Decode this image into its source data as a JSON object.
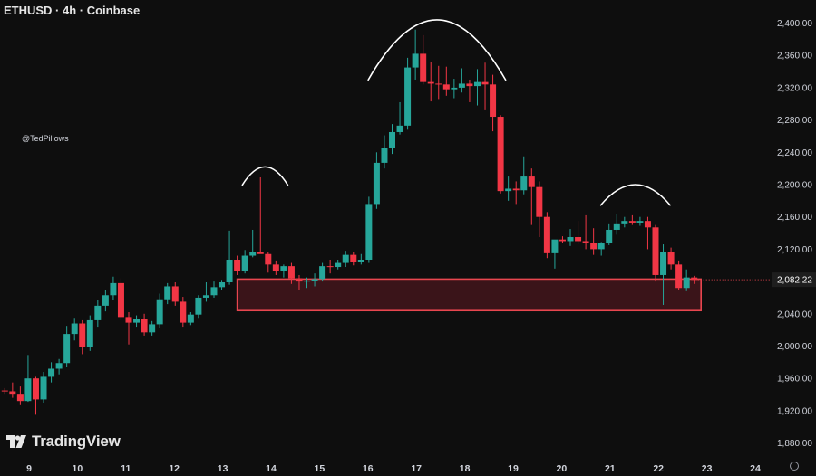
{
  "header": {
    "title": "ETHUSD · 4h · Coinbase"
  },
  "watermark": "@TedPillows",
  "brand": {
    "name": "TradingView"
  },
  "colors": {
    "up": "#26a69a",
    "down": "#f23645",
    "zone_border": "#e8464f",
    "zone_fill": "#3a1419",
    "price_label_bg": "#1e1e1e"
  },
  "icons": {
    "logo": "tradingview-logo-icon",
    "settings": "gear-icon"
  },
  "chart_data": {
    "type": "candlestick",
    "symbol": "ETHUSD",
    "timeframe": "4h",
    "exchange": "Coinbase",
    "y_ticks": [
      "2,400.00",
      "2,360.00",
      "2,320.00",
      "2,280.00",
      "2,240.00",
      "2,200.00",
      "2,160.00",
      "2,120.00",
      "2,040.00",
      "2,000.00",
      "1,960.00",
      "1,920.00",
      "1,880.00"
    ],
    "x_ticks": [
      "9",
      "10",
      "11",
      "12",
      "13",
      "14",
      "15",
      "16",
      "17",
      "18",
      "19",
      "20",
      "21",
      "22",
      "23",
      "24"
    ],
    "ylim": [
      1876,
      2414
    ],
    "last_price": "2,082.22",
    "support_zone": {
      "low": 2044,
      "high": 2083,
      "from_day": 13.3,
      "to_day": 22.88
    },
    "arcs": [
      {
        "label": "left shoulder",
        "x_from": 13.4,
        "x_to": 14.35,
        "peak": 2222,
        "base": 2199
      },
      {
        "label": "head",
        "x_from": 16.0,
        "x_to": 18.85,
        "peak": 2404,
        "base": 2329
      },
      {
        "label": "right shoulder",
        "x_from": 20.8,
        "x_to": 22.25,
        "peak": 2200,
        "base": 2174
      }
    ],
    "candles": [
      [
        8.5,
        1945,
        1948,
        1941,
        1944
      ],
      [
        8.66,
        1944,
        1955,
        1936,
        1941
      ],
      [
        8.82,
        1941,
        1950,
        1928,
        1932
      ],
      [
        8.98,
        1932,
        1989,
        1931,
        1960
      ],
      [
        9.14,
        1960,
        1962,
        1915,
        1934
      ],
      [
        9.3,
        1934,
        1968,
        1930,
        1962
      ],
      [
        9.46,
        1962,
        1980,
        1955,
        1972
      ],
      [
        9.62,
        1972,
        1984,
        1965,
        1979
      ],
      [
        9.78,
        1979,
        2025,
        1974,
        2015
      ],
      [
        9.94,
        2015,
        2035,
        2007,
        2028
      ],
      [
        10.1,
        2028,
        2032,
        1990,
        1999
      ],
      [
        10.26,
        1999,
        2038,
        1994,
        2032
      ],
      [
        10.42,
        2032,
        2057,
        2024,
        2050
      ],
      [
        10.58,
        2050,
        2070,
        2043,
        2063
      ],
      [
        10.74,
        2063,
        2086,
        2057,
        2078
      ],
      [
        10.9,
        2078,
        2084,
        2032,
        2036
      ],
      [
        11.06,
        2036,
        2042,
        2002,
        2029
      ],
      [
        11.22,
        2029,
        2038,
        2024,
        2034
      ],
      [
        11.38,
        2034,
        2040,
        2013,
        2017
      ],
      [
        11.54,
        2017,
        2031,
        2013,
        2027
      ],
      [
        11.7,
        2027,
        2065,
        2023,
        2058
      ],
      [
        11.86,
        2058,
        2078,
        2052,
        2074
      ],
      [
        12.02,
        2074,
        2079,
        2050,
        2055
      ],
      [
        12.18,
        2055,
        2061,
        2024,
        2029
      ],
      [
        12.34,
        2029,
        2042,
        2026,
        2039
      ],
      [
        12.5,
        2039,
        2063,
        2035,
        2060
      ],
      [
        12.66,
        2060,
        2079,
        2055,
        2063
      ],
      [
        12.82,
        2063,
        2080,
        2060,
        2073
      ],
      [
        12.98,
        2073,
        2082,
        2070,
        2079
      ],
      [
        13.14,
        2079,
        2143,
        2076,
        2107
      ],
      [
        13.3,
        2107,
        2112,
        2088,
        2093
      ],
      [
        13.46,
        2093,
        2119,
        2090,
        2112
      ],
      [
        13.62,
        2112,
        2144,
        2110,
        2117
      ],
      [
        13.78,
        2117,
        2209,
        2115,
        2114
      ],
      [
        13.94,
        2114,
        2116,
        2091,
        2101
      ],
      [
        14.1,
        2101,
        2106,
        2088,
        2093
      ],
      [
        14.26,
        2093,
        2101,
        2085,
        2099
      ],
      [
        14.42,
        2099,
        2103,
        2077,
        2084
      ],
      [
        14.58,
        2084,
        2088,
        2070,
        2080
      ],
      [
        14.74,
        2080,
        2085,
        2072,
        2081
      ],
      [
        14.9,
        2081,
        2090,
        2074,
        2083
      ],
      [
        15.06,
        2083,
        2103,
        2080,
        2099
      ],
      [
        15.22,
        2099,
        2107,
        2090,
        2098
      ],
      [
        15.38,
        2098,
        2107,
        2095,
        2103
      ],
      [
        15.54,
        2103,
        2118,
        2098,
        2113
      ],
      [
        15.7,
        2113,
        2116,
        2100,
        2104
      ],
      [
        15.86,
        2104,
        2114,
        2101,
        2107
      ],
      [
        16.02,
        2107,
        2185,
        2103,
        2176
      ],
      [
        16.18,
        2176,
        2240,
        2170,
        2227
      ],
      [
        16.34,
        2227,
        2261,
        2220,
        2245
      ],
      [
        16.5,
        2245,
        2275,
        2238,
        2265
      ],
      [
        16.66,
        2265,
        2302,
        2262,
        2273
      ],
      [
        16.82,
        2273,
        2357,
        2268,
        2345
      ],
      [
        16.98,
        2345,
        2392,
        2330,
        2362
      ],
      [
        17.14,
        2362,
        2385,
        2324,
        2327
      ],
      [
        17.3,
        2327,
        2352,
        2303,
        2325
      ],
      [
        17.46,
        2325,
        2347,
        2306,
        2324
      ],
      [
        17.62,
        2324,
        2346,
        2310,
        2318
      ],
      [
        17.78,
        2318,
        2331,
        2307,
        2320
      ],
      [
        17.94,
        2320,
        2344,
        2314,
        2325
      ],
      [
        18.1,
        2325,
        2330,
        2302,
        2322
      ],
      [
        18.26,
        2322,
        2343,
        2298,
        2327
      ],
      [
        18.42,
        2327,
        2351,
        2292,
        2324
      ],
      [
        18.58,
        2324,
        2336,
        2266,
        2284
      ],
      [
        18.74,
        2284,
        2286,
        2189,
        2192
      ],
      [
        18.9,
        2192,
        2210,
        2180,
        2195
      ],
      [
        19.06,
        2195,
        2204,
        2176,
        2193
      ],
      [
        19.22,
        2193,
        2235,
        2188,
        2210
      ],
      [
        19.38,
        2210,
        2220,
        2150,
        2197
      ],
      [
        19.54,
        2197,
        2204,
        2135,
        2160
      ],
      [
        19.7,
        2160,
        2166,
        2109,
        2115
      ],
      [
        19.86,
        2115,
        2128,
        2096,
        2132
      ],
      [
        20.02,
        2132,
        2136,
        2128,
        2130
      ],
      [
        20.18,
        2130,
        2145,
        2124,
        2135
      ],
      [
        20.34,
        2135,
        2155,
        2126,
        2130
      ],
      [
        20.5,
        2130,
        2162,
        2120,
        2128
      ],
      [
        20.66,
        2128,
        2146,
        2113,
        2120
      ],
      [
        20.82,
        2120,
        2129,
        2112,
        2128
      ],
      [
        20.98,
        2128,
        2152,
        2125,
        2144
      ],
      [
        21.14,
        2144,
        2164,
        2138,
        2152
      ],
      [
        21.3,
        2152,
        2160,
        2147,
        2155
      ],
      [
        21.46,
        2155,
        2162,
        2150,
        2153
      ],
      [
        21.62,
        2153,
        2160,
        2149,
        2155
      ],
      [
        21.78,
        2155,
        2160,
        2120,
        2147
      ],
      [
        21.94,
        2147,
        2150,
        2080,
        2088
      ],
      [
        22.1,
        2088,
        2126,
        2051,
        2116
      ],
      [
        22.26,
        2116,
        2122,
        2095,
        2101
      ],
      [
        22.42,
        2101,
        2106,
        2070,
        2072
      ],
      [
        22.58,
        2072,
        2095,
        2068,
        2085
      ],
      [
        22.74,
        2085,
        2087,
        2077,
        2082
      ]
    ]
  }
}
